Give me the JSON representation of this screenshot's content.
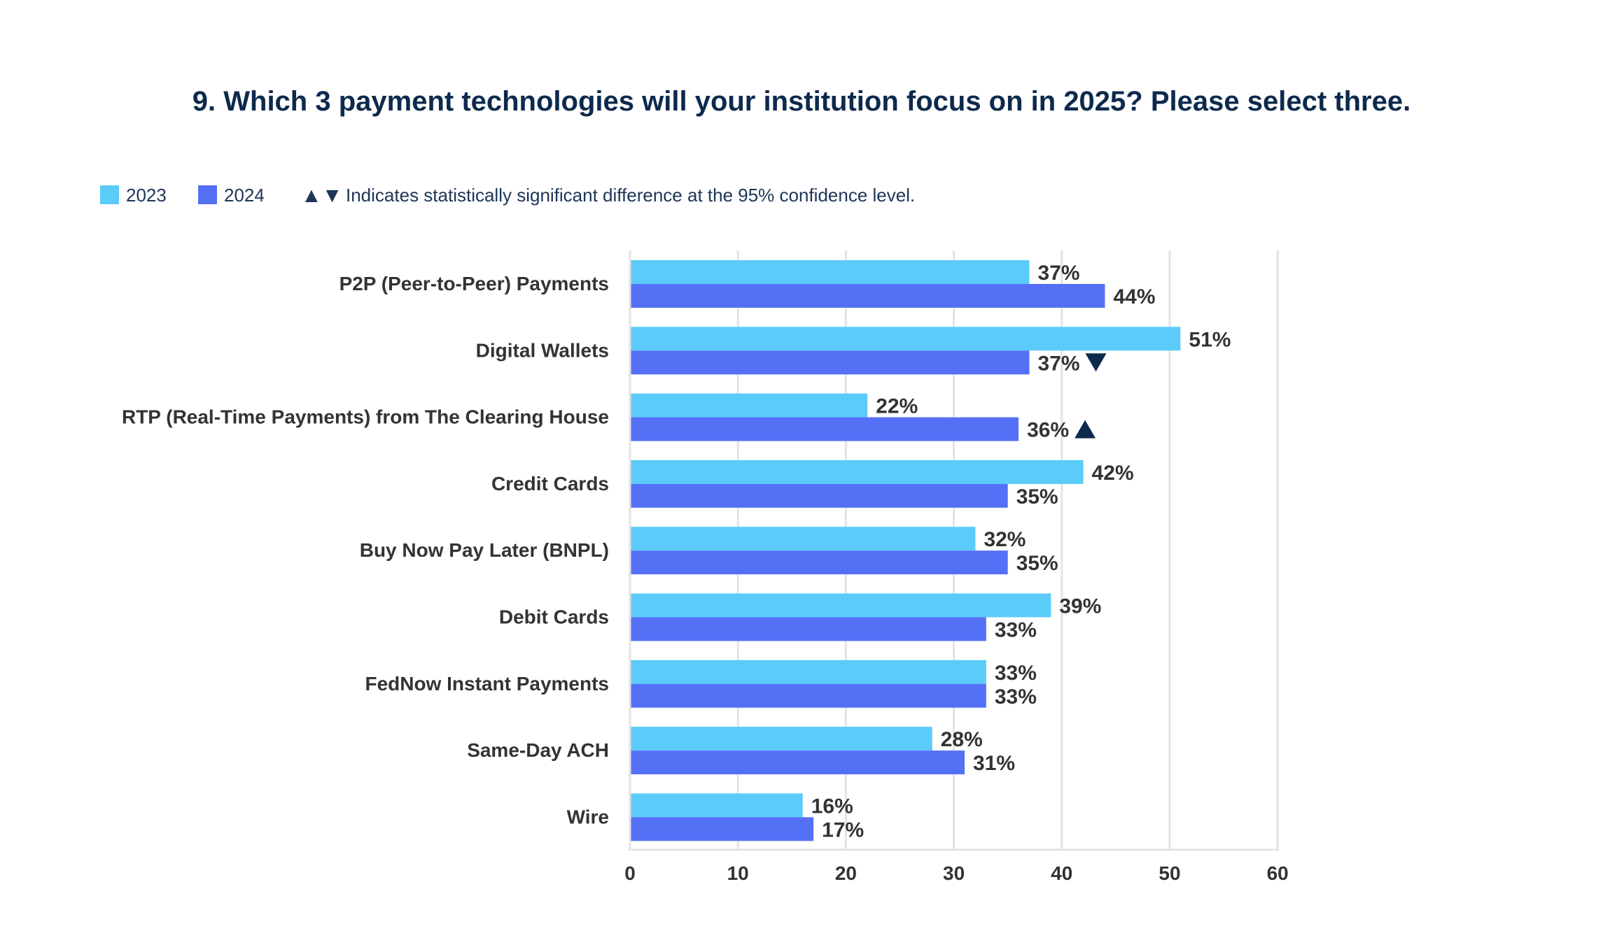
{
  "chart_data": {
    "type": "bar",
    "orientation": "horizontal",
    "title": "9. Which 3 payment technologies will your institution focus on in 2025? Please select three.",
    "categories": [
      "P2P (Peer-to-Peer) Payments",
      "Digital Wallets",
      "RTP (Real-Time Payments) from The Clearing House",
      "Credit Cards",
      "Buy Now Pay Later (BNPL)",
      "Debit Cards",
      "FedNow Instant Payments",
      "Same-Day ACH",
      "Wire"
    ],
    "series": [
      {
        "name": "2023",
        "color": "#5bcbfa",
        "values": [
          37,
          51,
          22,
          42,
          32,
          39,
          33,
          28,
          16
        ],
        "labels": [
          "37%",
          "51%",
          "22%",
          "42%",
          "32%",
          "39%",
          "33%",
          "28%",
          "16%"
        ]
      },
      {
        "name": "2024",
        "color": "#5470f5",
        "values": [
          44,
          37,
          36,
          35,
          35,
          33,
          33,
          31,
          17
        ],
        "labels": [
          "44%",
          "37%",
          "36%",
          "35%",
          "35%",
          "33%",
          "33%",
          "31%",
          "17%"
        ],
        "significance": [
          null,
          "down",
          "up",
          null,
          null,
          null,
          null,
          null,
          null
        ]
      }
    ],
    "xlim": [
      0,
      60
    ],
    "xticks": [
      "0",
      "10",
      "20",
      "30",
      "40",
      "50",
      "60"
    ],
    "xlabel": "",
    "ylabel": "",
    "grid": true,
    "legend": {
      "position": "top-left",
      "items": [
        "2023",
        "2024"
      ],
      "note_symbols": "▲▼",
      "note": "Indicates statistically significant difference at the 95% confidence level."
    },
    "significance_color": "#0d2a4d"
  }
}
